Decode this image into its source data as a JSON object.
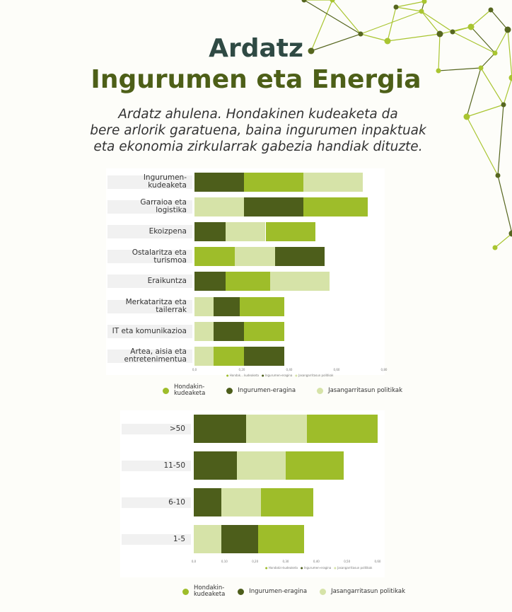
{
  "header": {
    "title_line1": "Ardatz",
    "title_line2": "Ingurumen eta Energia",
    "subtitle_lines": [
      "Ardatz ahulena. Hondakinen kudeaketa da",
      "bere arlorik garatuena, baina ingurumen inpaktuak",
      "eta ekonomia zirkularrak gabezia handiak dituzte."
    ]
  },
  "colors": {
    "hondakin": "#9ebd2a",
    "ingurumen": "#4d5e1b",
    "jasangarritasun": "#d6e3a8"
  },
  "chart_data": [
    {
      "type": "bar",
      "orientation": "horizontal",
      "stacked": true,
      "categories": [
        "Ingurumen-kudeaketa",
        "Garraioa eta logistika",
        "Ekoizpena",
        "Ostalaritza eta turismoa",
        "Eraikuntza",
        "Merkataritza eta tailerrak",
        "IT eta komunikazioa",
        "Artea, aisia eta entretenimentua"
      ],
      "category_display": [
        [
          "Ingurumen-kudeaketa"
        ],
        [
          "Garraioa eta logistika"
        ],
        [
          "Ekoizpena"
        ],
        [
          "Ostalaritza eta turismoa"
        ],
        [
          "Eraikuntza"
        ],
        [
          "Merkataritza eta tailerrak"
        ],
        [
          "IT eta komunikazioa"
        ],
        [
          "Artea, aisia eta",
          "entretenimentua"
        ]
      ],
      "stack_order": [
        [
          "ingurumen",
          "hondakin",
          "jasangarritasun"
        ],
        [
          "jasangarritasun",
          "ingurumen",
          "hondakin"
        ],
        [
          "ingurumen",
          "jasangarritasun",
          "hondakin"
        ],
        [
          "hondakin",
          "jasangarritasun",
          "ingurumen"
        ],
        [
          "ingurumen",
          "hondakin",
          "jasangarritasun"
        ],
        [
          "jasangarritasun",
          "ingurumen",
          "hondakin"
        ],
        [
          "jasangarritasun",
          "ingurumen",
          "hondakin"
        ],
        [
          "jasangarritasun",
          "hondakin",
          "ingurumen"
        ]
      ],
      "series": [
        {
          "key": "hondakin",
          "name": "Hondakin-kudeaketa",
          "values": [
            0.25,
            0.27,
            0.21,
            0.17,
            0.19,
            0.19,
            0.17,
            0.13
          ]
        },
        {
          "key": "ingurumen",
          "name": "Ingurumen-eragina",
          "values": [
            0.21,
            0.25,
            0.13,
            0.21,
            0.13,
            0.11,
            0.13,
            0.17
          ]
        },
        {
          "key": "jasangarritasun",
          "name": "Jasangarritasun politikak",
          "values": [
            0.25,
            0.21,
            0.17,
            0.17,
            0.25,
            0.08,
            0.08,
            0.08
          ]
        }
      ],
      "xlim": [
        0,
        0.8
      ],
      "xticks": [
        "0,0",
        "0,20",
        "0,40",
        "0,60",
        "0,80"
      ],
      "mini_legend": [
        "Hondak... kudeaketa",
        "Ingurumen-eragina",
        "Jasangarritasun politikak"
      ],
      "legend": {
        "placement": "bottom",
        "labels": [
          "Hondakin-\nkudeaketa",
          "Ingurumen-eragina",
          "Jasangarritasun politikak"
        ]
      }
    },
    {
      "type": "bar",
      "orientation": "horizontal",
      "stacked": true,
      "categories": [
        ">50",
        "11-50",
        "6-10",
        "1-5"
      ],
      "category_display": [
        [
          ">50"
        ],
        [
          "11-50"
        ],
        [
          "6-10"
        ],
        [
          "1-5"
        ]
      ],
      "stack_order": [
        [
          "ingurumen",
          "jasangarritasun",
          "hondakin"
        ],
        [
          "ingurumen",
          "jasangarritasun",
          "hondakin"
        ],
        [
          "ingurumen",
          "jasangarritasun",
          "hondakin"
        ],
        [
          "jasangarritasun",
          "ingurumen",
          "hondakin"
        ]
      ],
      "series": [
        {
          "key": "hondakin",
          "name": "Hondakin-kudeaketa",
          "values": [
            0.23,
            0.19,
            0.17,
            0.15
          ]
        },
        {
          "key": "ingurumen",
          "name": "Ingurumen-eragina",
          "values": [
            0.17,
            0.14,
            0.09,
            0.12
          ]
        },
        {
          "key": "jasangarritasun",
          "name": "Jasangarritasun politikak",
          "values": [
            0.2,
            0.16,
            0.13,
            0.09
          ]
        }
      ],
      "xlim": [
        0,
        0.6
      ],
      "xticks": [
        "0,0",
        "0,10",
        "0,20",
        "0,30",
        "0,40",
        "0,50",
        "0,60"
      ],
      "mini_legend": [
        "Hondakin-kudeaketa",
        "Ingurumen-eragina",
        "Jasangarritasun politikak"
      ],
      "legend": {
        "placement": "bottom",
        "labels": [
          "Hondakin-\nkudeaketa",
          "Ingurumen-eragina",
          "Jasangarritasun politikak"
        ]
      }
    }
  ]
}
